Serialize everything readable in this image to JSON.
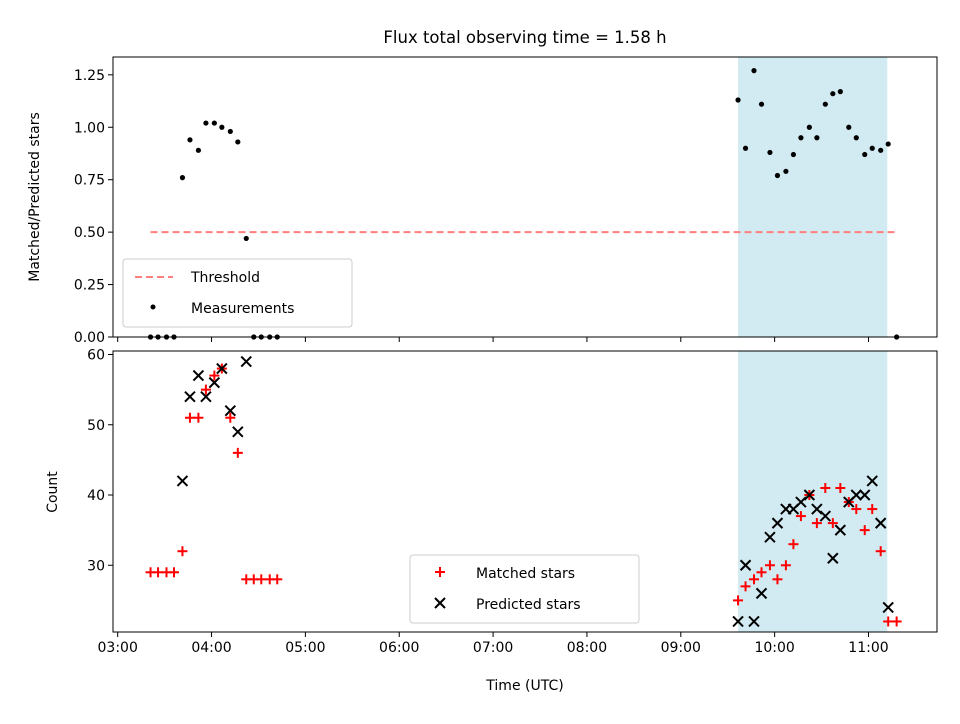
{
  "chart_data": {
    "type": "scatter",
    "title": "Flux total observing time = 1.58 h",
    "xlabel": "Time (UTC)",
    "x_unit": "hours UTC",
    "xlim": [
      2.95,
      11.73
    ],
    "x_ticks": [
      {
        "value": 3,
        "label": "03:00"
      },
      {
        "value": 4,
        "label": "04:00"
      },
      {
        "value": 5,
        "label": "05:00"
      },
      {
        "value": 6,
        "label": "06:00"
      },
      {
        "value": 7,
        "label": "07:00"
      },
      {
        "value": 8,
        "label": "08:00"
      },
      {
        "value": 9,
        "label": "09:00"
      },
      {
        "value": 10,
        "label": "10:00"
      },
      {
        "value": 11,
        "label": "11:00"
      }
    ],
    "shaded_interval": {
      "x": [
        9.61,
        11.2
      ],
      "color": "#add8e6"
    },
    "panels": [
      {
        "ylabel": "Matched/Predicted stars",
        "ylim": [
          0,
          1.335
        ],
        "y_ticks": [
          {
            "value": 0,
            "label": "0.00"
          },
          {
            "value": 0.25,
            "label": "0.25"
          },
          {
            "value": 0.5,
            "label": "0.50"
          },
          {
            "value": 0.75,
            "label": "0.75"
          },
          {
            "value": 1.0,
            "label": "1.00"
          },
          {
            "value": 1.25,
            "label": "1.25"
          }
        ],
        "legend": {
          "placement": "lower-left",
          "entries": [
            "Threshold",
            "Measurements"
          ]
        },
        "threshold": {
          "name": "Threshold",
          "value": 0.5,
          "x_range": [
            3.35,
            11.3
          ],
          "color": "#ff7f7f"
        },
        "series": [
          {
            "name": "Measurements",
            "marker": "dot",
            "color": "#000000",
            "x": [
              3.35,
              3.43,
              3.52,
              3.6,
              3.69,
              3.77,
              3.86,
              3.94,
              4.03,
              4.11,
              4.2,
              4.28,
              4.37,
              4.45,
              4.53,
              4.62,
              4.7,
              9.61,
              9.69,
              9.78,
              9.86,
              9.95,
              10.03,
              10.12,
              10.2,
              10.28,
              10.37,
              10.45,
              10.54,
              10.62,
              10.7,
              10.79,
              10.87,
              10.96,
              11.04,
              11.13,
              11.21,
              11.3
            ],
            "y": [
              0,
              0,
              0,
              0,
              0.76,
              0.94,
              0.89,
              1.02,
              1.02,
              1.0,
              0.98,
              0.93,
              0.47,
              0,
              0,
              0,
              0,
              1.13,
              0.9,
              1.27,
              1.11,
              0.88,
              0.77,
              0.79,
              0.87,
              0.95,
              1.0,
              0.95,
              1.11,
              1.16,
              1.17,
              1.0,
              0.95,
              0.87,
              0.9,
              0.89,
              0.92,
              0
            ]
          }
        ]
      },
      {
        "ylabel": "Count",
        "ylim": [
          20.5,
          60.5
        ],
        "y_ticks": [
          {
            "value": 30,
            "label": "30"
          },
          {
            "value": 40,
            "label": "40"
          },
          {
            "value": 50,
            "label": "50"
          },
          {
            "value": 60,
            "label": "60"
          }
        ],
        "legend": {
          "placement": "lower-center",
          "entries": [
            "Matched stars",
            "Predicted stars"
          ]
        },
        "series": [
          {
            "name": "Matched stars",
            "marker": "plus",
            "color": "#ff0000",
            "x": [
              3.35,
              3.43,
              3.52,
              3.6,
              3.69,
              3.77,
              3.86,
              3.94,
              4.03,
              4.11,
              4.2,
              4.28,
              4.37,
              4.45,
              4.53,
              4.62,
              4.7,
              9.61,
              9.69,
              9.78,
              9.86,
              9.95,
              10.03,
              10.12,
              10.2,
              10.28,
              10.37,
              10.45,
              10.54,
              10.62,
              10.7,
              10.79,
              10.87,
              10.96,
              11.04,
              11.13,
              11.21,
              11.3
            ],
            "y": [
              29,
              29,
              29,
              29,
              32,
              51,
              51,
              55,
              57,
              58,
              51,
              46,
              28,
              28,
              28,
              28,
              28,
              25,
              27,
              28,
              29,
              30,
              28,
              30,
              33,
              37,
              40,
              36,
              41,
              36,
              41,
              39,
              38,
              35,
              38,
              32,
              22,
              22
            ]
          },
          {
            "name": "Predicted stars",
            "marker": "x",
            "color": "#000000",
            "x": [
              3.69,
              3.77,
              3.86,
              3.94,
              4.03,
              4.11,
              4.2,
              4.28,
              4.37,
              9.61,
              9.69,
              9.78,
              9.86,
              9.95,
              10.03,
              10.12,
              10.2,
              10.28,
              10.37,
              10.45,
              10.54,
              10.62,
              10.7,
              10.79,
              10.87,
              10.96,
              11.04,
              11.13,
              11.21
            ],
            "y": [
              42,
              54,
              57,
              54,
              56,
              58,
              52,
              49,
              59,
              22,
              30,
              22,
              26,
              34,
              36,
              38,
              38,
              39,
              40,
              38,
              37,
              31,
              35,
              39,
              40,
              40,
              42,
              36,
              24
            ]
          }
        ]
      }
    ]
  }
}
